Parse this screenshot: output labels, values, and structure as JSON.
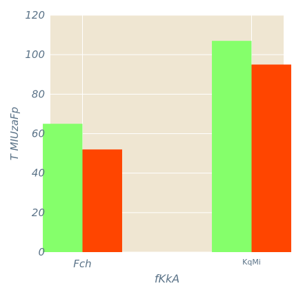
{
  "chart_data": {
    "type": "bar",
    "categories": [
      "Fch",
      "KqMi"
    ],
    "series": [
      {
        "values": [
          65,
          107
        ],
        "color": "#85ff6b"
      },
      {
        "values": [
          52,
          95
        ],
        "color": "#ff4500"
      }
    ],
    "xlabel": "fKkA",
    "ylabel": "T MIUzaFp",
    "ylim": [
      0,
      120
    ],
    "yticks": [
      0,
      20,
      40,
      60,
      80,
      100,
      120
    ],
    "grid": true,
    "legend": "none"
  },
  "style": {
    "plot_background": "#efe6d2",
    "grid_color": "#ffffff",
    "text_color": "#5b7388"
  }
}
